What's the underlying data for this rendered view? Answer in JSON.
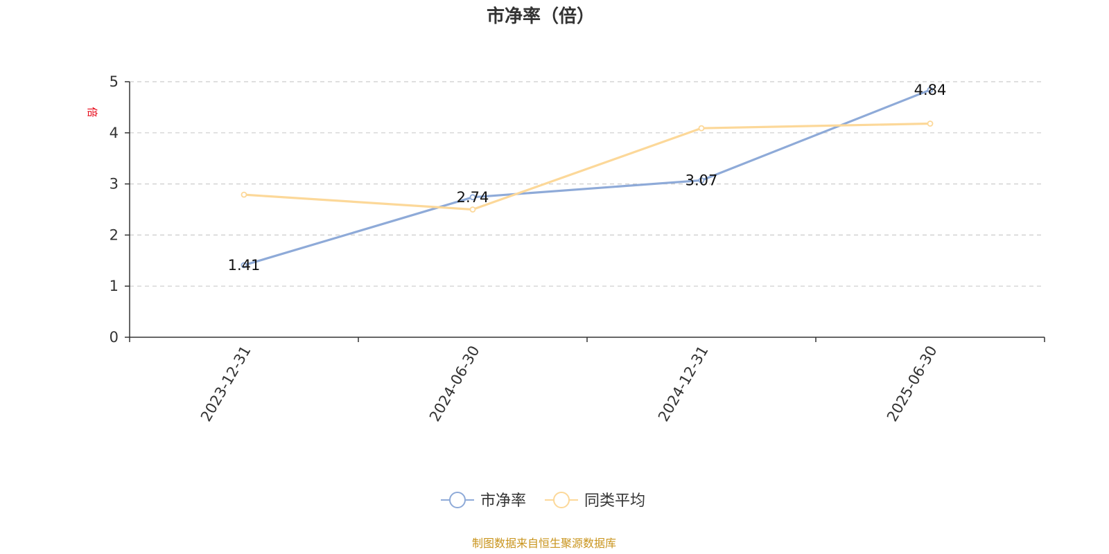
{
  "chart_data": {
    "type": "line",
    "title": "市净率（倍）",
    "ylabel": "倍",
    "ylim": [
      0,
      5
    ],
    "yticks": [
      0,
      1,
      2,
      3,
      4,
      5
    ],
    "categories": [
      "2023-12-31",
      "2024-06-30",
      "2024-12-31",
      "2025-06-30"
    ],
    "series": [
      {
        "name": "市净率",
        "values": [
          1.41,
          2.74,
          3.07,
          4.84
        ],
        "color": "#8eaad8",
        "show_labels": true
      },
      {
        "name": "同类平均",
        "values": [
          2.79,
          2.5,
          4.09,
          4.18
        ],
        "color": "#fcd899",
        "show_labels": false
      }
    ],
    "grid": true,
    "legend": "bottom-center"
  },
  "footer": "制图数据来自恒生聚源数据库"
}
